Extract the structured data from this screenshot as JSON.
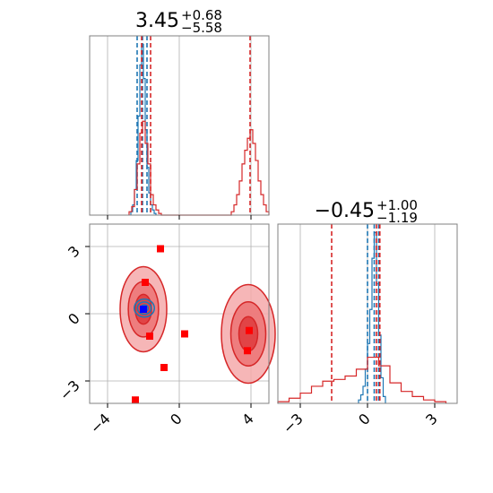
{
  "colors": {
    "blue": "#1f77b4",
    "red": "#d62728",
    "marker_red": "#ff0000",
    "marker_blue": "#0000ff",
    "grid": "#b0b0b0",
    "frame": "#808080"
  },
  "chart_data": {
    "type": "corner",
    "grid": true,
    "titles": [
      {
        "base": "3.45",
        "sup": "+0.68",
        "sub": "−5.58"
      },
      {
        "base": "−0.45",
        "sup": "+1.00",
        "sub": "−1.19"
      }
    ],
    "axes": {
      "param1": {
        "range": [
          -5,
          5
        ],
        "ticks": [
          -4,
          0,
          4
        ],
        "tick_labels": [
          "−4",
          "0",
          "4"
        ]
      },
      "param2": {
        "range": [
          -4,
          4
        ],
        "ticks": [
          -3,
          0,
          3
        ],
        "tick_labels": [
          "−3",
          "0",
          "3"
        ]
      },
      "param2_marginal_x": {
        "range": [
          -4,
          4
        ],
        "ticks": [
          -3,
          0,
          3
        ],
        "tick_labels": [
          "−3",
          "0",
          "3"
        ]
      }
    },
    "marginal_param1": {
      "series": [
        {
          "name": "",
          "color": "blue",
          "bin_edges": [
            -2.7,
            -2.6,
            -2.5,
            -2.4,
            -2.3,
            -2.2,
            -2.1,
            -2.0,
            -1.9,
            -1.8,
            -1.7,
            -1.6,
            -1.5,
            -1.4,
            -1.3
          ],
          "counts": [
            0.02,
            0.06,
            0.15,
            0.32,
            0.58,
            0.88,
            1.0,
            0.8,
            0.5,
            0.28,
            0.13,
            0.06,
            0.03,
            0.01
          ],
          "quantiles": [
            -2.35,
            -2.05,
            -1.8
          ]
        },
        {
          "name": "",
          "color": "red",
          "bin_edges": [
            -2.8,
            -2.65,
            -2.5,
            -2.35,
            -2.2,
            -2.05,
            -1.9,
            -1.75,
            -1.6,
            -1.45,
            -1.3,
            -1.15,
            -1.0,
            2.9,
            3.05,
            3.2,
            3.35,
            3.5,
            3.65,
            3.8,
            3.95,
            4.1,
            4.25,
            4.4,
            4.55,
            4.7,
            4.85,
            5.0
          ],
          "counts": [
            0.02,
            0.05,
            0.15,
            0.3,
            0.48,
            0.55,
            0.42,
            0.3,
            0.12,
            0.06,
            0.03,
            0.01,
            0.0,
            0.02,
            0.06,
            0.12,
            0.2,
            0.3,
            0.38,
            0.45,
            0.5,
            0.42,
            0.32,
            0.2,
            0.12,
            0.06,
            0.02
          ],
          "quantiles": [
            -2.1,
            -1.6,
            3.95
          ]
        }
      ]
    },
    "marginal_param2": {
      "series": [
        {
          "name": "",
          "color": "blue",
          "bin_edges": [
            -0.4,
            -0.3,
            -0.2,
            -0.1,
            0.0,
            0.1,
            0.2,
            0.3,
            0.4,
            0.5,
            0.6,
            0.7,
            0.8
          ],
          "counts": [
            0.02,
            0.05,
            0.1,
            0.2,
            0.35,
            0.55,
            0.85,
            1.0,
            0.7,
            0.4,
            0.15,
            0.04
          ],
          "quantiles": [
            0.0,
            0.3,
            0.5
          ]
        },
        {
          "name": "",
          "color": "red",
          "bin_edges": [
            -4.0,
            -3.5,
            -3.0,
            -2.5,
            -2.0,
            -1.5,
            -1.0,
            -0.5,
            0.0,
            0.5,
            1.0,
            1.5,
            2.0,
            2.5,
            3.0,
            3.5
          ],
          "counts": [
            0.01,
            0.03,
            0.06,
            0.1,
            0.13,
            0.14,
            0.16,
            0.2,
            0.27,
            0.22,
            0.12,
            0.07,
            0.04,
            0.02,
            0.01
          ],
          "quantiles": [
            -1.6,
            0.4,
            0.55
          ]
        }
      ]
    },
    "joint": {
      "red_modes": [
        {
          "center": [
            -2.0,
            0.2
          ],
          "sigma": [
            0.65,
            0.95
          ]
        },
        {
          "center": [
            3.85,
            -0.9
          ],
          "sigma": [
            0.75,
            1.1
          ]
        }
      ],
      "blue_mode": {
        "center": [
          -1.95,
          0.25
        ],
        "sigma": [
          0.35,
          0.25
        ]
      },
      "red_markers": [
        {
          "x": -1.05,
          "y": 2.9
        },
        {
          "x": -1.9,
          "y": 1.4
        },
        {
          "x": -1.65,
          "y": -1.0
        },
        {
          "x": 0.3,
          "y": -0.9
        },
        {
          "x": -0.85,
          "y": -2.4
        },
        {
          "x": -2.45,
          "y": -3.85
        },
        {
          "x": 3.9,
          "y": -0.75
        },
        {
          "x": 3.8,
          "y": -1.65
        }
      ],
      "blue_markers": [
        {
          "x": -2.0,
          "y": 0.2
        }
      ]
    }
  }
}
